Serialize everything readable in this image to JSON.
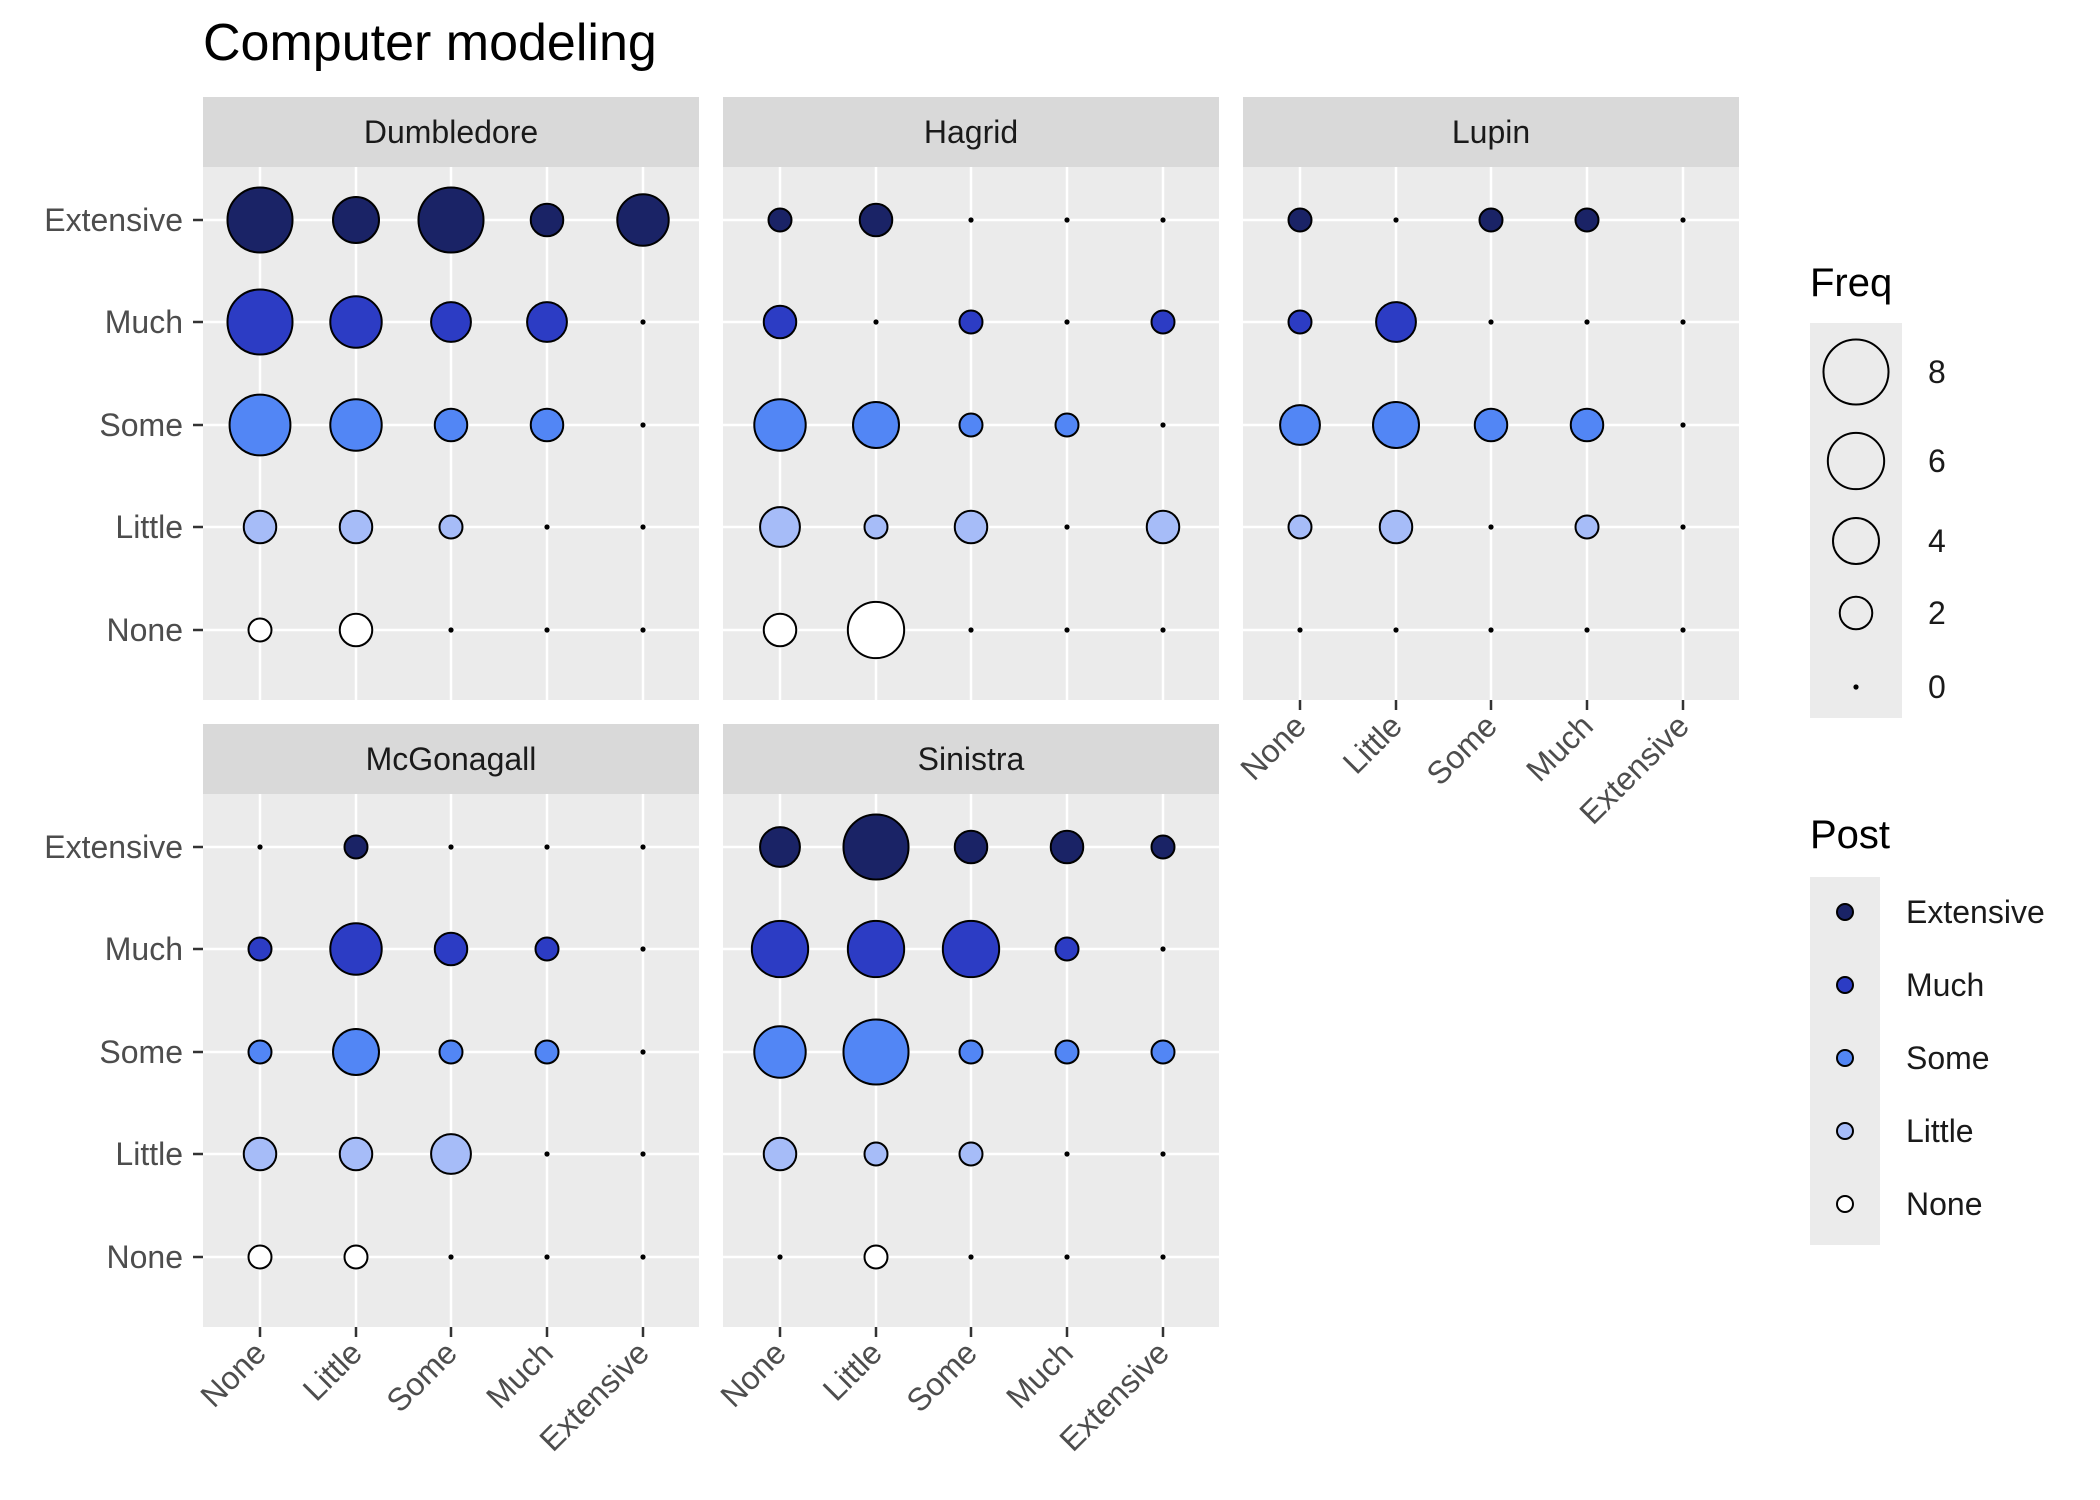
{
  "chart_data": {
    "type": "scatter",
    "title": "Computer modeling",
    "xlabel": "",
    "ylabel": "",
    "levels": [
      "None",
      "Little",
      "Some",
      "Much",
      "Extensive"
    ],
    "size_legend": {
      "title": "Freq",
      "breaks": [
        8,
        6,
        4,
        2,
        0
      ]
    },
    "fill_legend": {
      "title": "Post",
      "entries": [
        "Extensive",
        "Much",
        "Some",
        "Little",
        "None"
      ]
    },
    "colors": {
      "None": "#ffffff",
      "Little": "#a6bcf8",
      "Some": "#5286f5",
      "Much": "#2c3cc4",
      "Extensive": "#1a2366"
    },
    "panels": [
      {
        "name": "Dumbledore",
        "freq": {
          "None": [
            1,
            2,
            0,
            0,
            0
          ],
          "Little": [
            2,
            2,
            1,
            0,
            0
          ],
          "Some": [
            7,
            5,
            2,
            2,
            0
          ],
          "Much": [
            8,
            5,
            3,
            3,
            0
          ],
          "Extensive": [
            8,
            4,
            8,
            2,
            5
          ]
        }
      },
      {
        "name": "Hagrid",
        "freq": {
          "None": [
            2,
            6,
            0,
            0,
            0
          ],
          "Little": [
            3,
            1,
            2,
            0,
            2
          ],
          "Some": [
            5,
            4,
            1,
            1,
            0
          ],
          "Much": [
            2,
            0,
            1,
            0,
            1
          ],
          "Extensive": [
            1,
            2,
            0,
            0,
            0
          ]
        }
      },
      {
        "name": "Lupin",
        "freq": {
          "None": [
            0,
            0,
            0,
            0,
            0
          ],
          "Little": [
            1,
            2,
            0,
            1,
            0
          ],
          "Some": [
            3,
            4,
            2,
            2,
            0
          ],
          "Much": [
            1,
            3,
            0,
            0,
            0
          ],
          "Extensive": [
            1,
            0,
            1,
            1,
            0
          ]
        }
      },
      {
        "name": "McGonagall",
        "freq": {
          "None": [
            1,
            1,
            0,
            0,
            0
          ],
          "Little": [
            2,
            2,
            3,
            0,
            0
          ],
          "Some": [
            1,
            4,
            1,
            1,
            0
          ],
          "Much": [
            1,
            5,
            2,
            1,
            0
          ],
          "Extensive": [
            0,
            1,
            0,
            0,
            0
          ]
        }
      },
      {
        "name": "Sinistra",
        "freq": {
          "None": [
            0,
            1,
            0,
            0,
            0
          ],
          "Little": [
            2,
            1,
            1,
            0,
            0
          ],
          "Some": [
            5,
            8,
            1,
            1,
            1
          ],
          "Much": [
            6,
            6,
            6,
            1,
            0
          ],
          "Extensive": [
            3,
            8,
            2,
            2,
            1
          ]
        }
      }
    ]
  }
}
